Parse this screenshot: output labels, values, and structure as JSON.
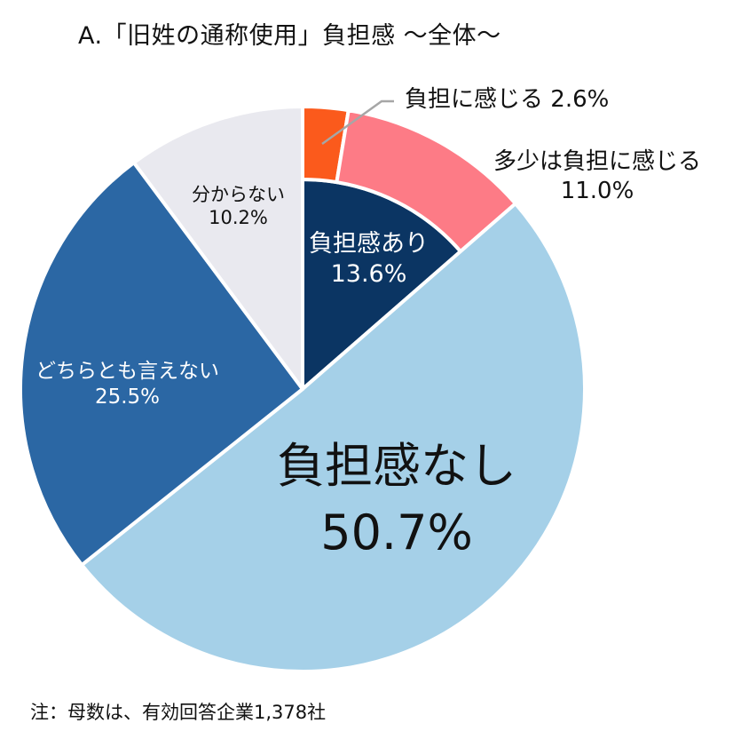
{
  "title": "A.「旧姓の通称使用」負担感 ～全体～",
  "note": "注：母数は、有効回答企業1,378社",
  "chart_data": {
    "type": "pie",
    "title": "A.「旧姓の通称使用」負担感 ～全体～",
    "note": "注：母数は、有効回答企業1,378社",
    "categories": [
      "負担感あり",
      "負担感なし",
      "どちらとも言えない",
      "分からない"
    ],
    "values": [
      13.6,
      50.7,
      25.5,
      10.2
    ],
    "breakdown": {
      "parent": "負担感あり",
      "categories": [
        "負担に感じる",
        "多少は負担に感じる"
      ],
      "values": [
        2.6,
        11.0
      ]
    },
    "colors": {
      "負担感あり": "#0b3563",
      "負担に感じる": "#fb5a1c",
      "多少は負担に感じる": "#fd7b86",
      "負担感なし": "#a5d0e8",
      "どちらとも言えない": "#2b67a4",
      "分からない": "#e9e9ef"
    },
    "start_angle": "12 o'clock, clockwise",
    "legend": "none (direct labels)"
  },
  "labels": {
    "burden_yes": {
      "name": "負担感あり",
      "value": "13.6%"
    },
    "burden_feel": {
      "name": "負担に感じる",
      "value": "2.6%"
    },
    "burden_some": {
      "name": "多少は負担に感じる",
      "value": "11.0%"
    },
    "burden_no": {
      "name": "負担感なし",
      "value": "50.7%"
    },
    "neither": {
      "name": "どちらとも言えない",
      "value": "25.5%"
    },
    "unknown": {
      "name": "分からない",
      "value": "10.2%"
    }
  }
}
